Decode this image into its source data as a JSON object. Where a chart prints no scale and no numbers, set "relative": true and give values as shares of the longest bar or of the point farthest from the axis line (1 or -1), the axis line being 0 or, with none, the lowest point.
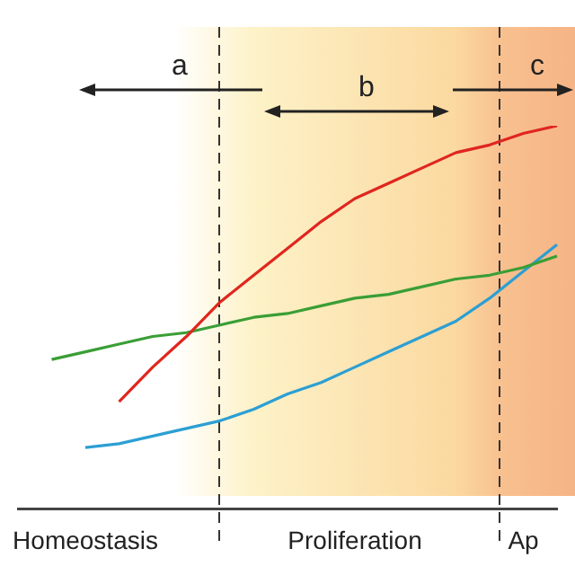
{
  "chart_data": {
    "type": "line",
    "relative": true,
    "legend": false,
    "marker": "none",
    "line_style": "solid",
    "categories": [
      null,
      null,
      "Homeostasis",
      null,
      null,
      null,
      null,
      null,
      null,
      null,
      "Proliferation",
      null,
      null,
      null,
      null,
      "Ap",
      null
    ],
    "series": [
      {
        "color": "#e0261e",
        "values": [
          null,
          null,
          null,
          0.28,
          0.37,
          0.45,
          0.54,
          0.61,
          0.68,
          0.75,
          0.81,
          0.85,
          0.89,
          0.93,
          0.95,
          0.98,
          1
        ]
      },
      {
        "color": "#3a9e35",
        "values": [
          null,
          0.39,
          0.41,
          0.43,
          0.45,
          0.46,
          0.48,
          0.5,
          0.51,
          0.53,
          0.55,
          0.56,
          0.58,
          0.6,
          0.61,
          0.63,
          0.66
        ]
      },
      {
        "color": "#2c9fd3",
        "values": [
          null,
          null,
          0.16,
          0.17,
          0.19,
          0.21,
          0.23,
          0.26,
          0.3,
          0.33,
          0.37,
          0.41,
          0.45,
          0.49,
          0.55,
          0.62,
          0.69
        ]
      }
    ],
    "annotations": [
      "a",
      "b",
      "c"
    ]
  }
}
